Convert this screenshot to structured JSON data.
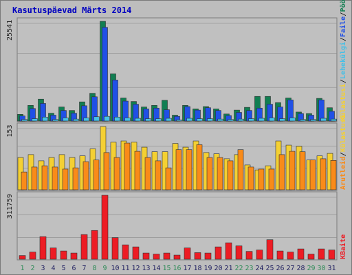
{
  "chart_data": {
    "type": "bar",
    "title": "Kasutuspäevad Märts 2014",
    "categories": [
      "1",
      "2",
      "3",
      "4",
      "5",
      "6",
      "7",
      "8",
      "9",
      "10",
      "11",
      "12",
      "13",
      "14",
      "15",
      "16",
      "17",
      "18",
      "19",
      "20",
      "21",
      "22",
      "23",
      "24",
      "25",
      "26",
      "27",
      "28",
      "29",
      "30",
      "31"
    ],
    "weekend_days": [
      "1",
      "2",
      "8",
      "9",
      "15",
      "16",
      "22",
      "23",
      "29",
      "30"
    ],
    "panels": [
      {
        "id": "hits",
        "ymax_label": "25541",
        "ymax": 25541,
        "legend": [
          "Külastajaid",
          "Külastusi",
          "Lehekülgi",
          "Faile",
          "Pöördumisi"
        ],
        "legend_colors": [
          "#888888",
          "#f4d033",
          "#46c0e6",
          "#2050e6",
          "#117e52"
        ],
        "series": [
          {
            "name": "Pöördumisi",
            "color": "#117e52",
            "values": [
              1700,
              4000,
              5600,
              2000,
              3600,
              2700,
              4900,
              7100,
              25541,
              12100,
              5900,
              5000,
              3600,
              4000,
              5300,
              1500,
              4000,
              3100,
              3700,
              3100,
              1800,
              2800,
              3500,
              6300,
              6300,
              4700,
              5900,
              2300,
              1900,
              5800,
              3400
            ]
          },
          {
            "name": "Faile",
            "color": "#2050e6",
            "values": [
              1300,
              3200,
              4500,
              1500,
              2700,
              2000,
              3900,
              6200,
              24000,
              10500,
              5100,
              4300,
              3100,
              3300,
              2900,
              1200,
              3700,
              2800,
              3400,
              2700,
              1400,
              2200,
              2700,
              3300,
              4300,
              3600,
              5400,
              1900,
              1500,
              5400,
              2500
            ]
          },
          {
            "name": "Lehekülgi",
            "color": "#46c0e6",
            "values": [
              400,
              600,
              1000,
              400,
              800,
              500,
              800,
              1100,
              1200,
              1000,
              800,
              700,
              600,
              600,
              700,
              300,
              700,
              600,
              600,
              500,
              400,
              500,
              600,
              700,
              800,
              600,
              800,
              400,
              400,
              700,
              500
            ]
          }
        ]
      },
      {
        "id": "visits",
        "ymax_label": "153",
        "ymax": 153,
        "series": [
          {
            "name": "Külastusi",
            "color": "#f4d033",
            "values": [
              78,
              85,
              70,
              78,
              85,
              78,
              82,
              99,
              153,
              115,
              118,
              115,
              103,
              92,
              92,
              112,
              103,
              118,
              90,
              87,
              75,
              85,
              60,
              48,
              58,
              118,
              108,
              105,
              72,
              82,
              88
            ]
          },
          {
            "name": "Külastajaid",
            "color": "#f98b19",
            "values": [
              43,
              55,
              58,
              55,
              50,
              53,
              68,
              72,
              90,
              78,
              113,
              93,
              78,
              70,
              53,
              97,
              97,
              109,
              78,
              78,
              70,
              97,
              55,
              50,
              50,
              85,
              93,
              92,
              72,
              75,
              71
            ]
          }
        ]
      },
      {
        "id": "kbytes",
        "ymax_label": "311759",
        "ymax": 311759,
        "legend": [
          "KBaite"
        ],
        "legend_colors": [
          "#ed1c24"
        ],
        "series": [
          {
            "name": "KBaite",
            "color": "#ed1c24",
            "values": [
              18000,
              35000,
              110000,
              55000,
              40000,
              30000,
              120000,
              140000,
              311759,
              105000,
              70000,
              60000,
              30000,
              25000,
              30000,
              20000,
              55000,
              32000,
              30000,
              60000,
              80000,
              65000,
              38000,
              45000,
              95000,
              40000,
              35000,
              50000,
              25000,
              50000,
              45000
            ]
          }
        ]
      }
    ],
    "legend_middle": [
      "Arutleid",
      "Külastusi"
    ],
    "legend_middle_colors": [
      "#f98b19",
      "#f4d033"
    ]
  },
  "colors": {
    "panel_bg": "#c0c0c0",
    "frame": "#7a7a7a",
    "title": "#0000c0",
    "weekday_label": "#1f1f5f",
    "weekend_label": "#2e8b57",
    "gridline": "#8a8a8a"
  }
}
